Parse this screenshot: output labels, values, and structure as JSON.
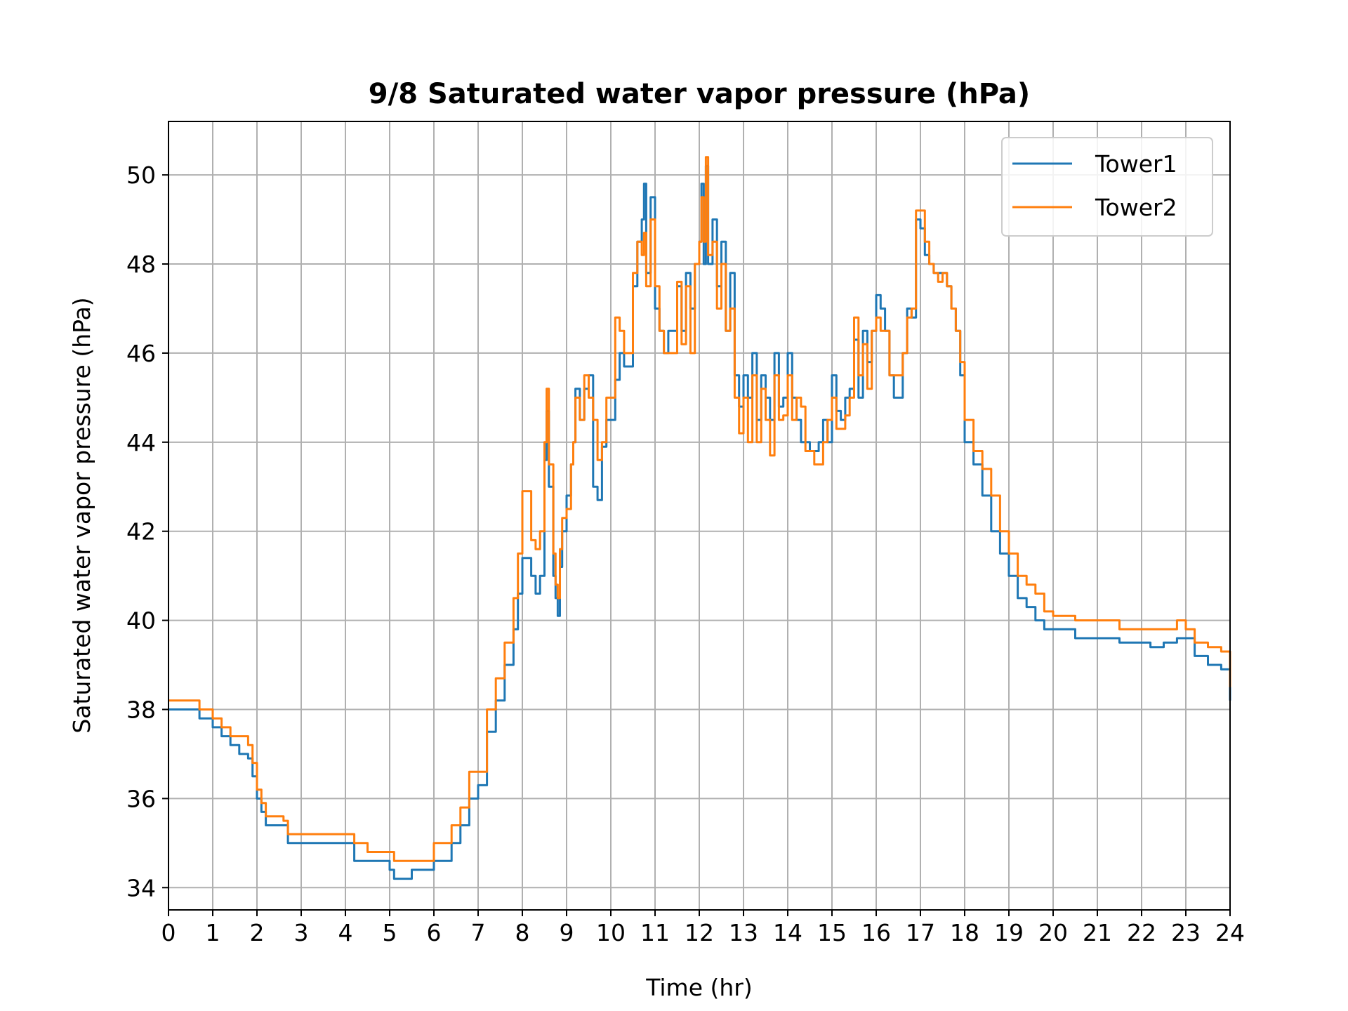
{
  "chart_data": {
    "type": "line",
    "title": "9/8 Saturated water vapor pressure (hPa)",
    "xlabel": "Time (hr)",
    "ylabel": "Saturated water vapor pressure (hPa)",
    "xlim": [
      0,
      24
    ],
    "ylim": [
      33.5,
      51.2
    ],
    "xticks": [
      "0",
      "1",
      "2",
      "3",
      "4",
      "5",
      "6",
      "7",
      "8",
      "9",
      "10",
      "11",
      "12",
      "13",
      "14",
      "15",
      "16",
      "17",
      "18",
      "19",
      "20",
      "21",
      "22",
      "23",
      "24"
    ],
    "yticks": [
      "34",
      "36",
      "38",
      "40",
      "42",
      "44",
      "46",
      "48",
      "50"
    ],
    "grid": true,
    "legend_position": "top-right",
    "series": [
      {
        "name": "Tower1",
        "color": "#1f77b4",
        "x": [
          0,
          0.5,
          0.6,
          0.7,
          0.8,
          1.0,
          1.2,
          1.4,
          1.6,
          1.8,
          1.9,
          2.0,
          2.1,
          2.2,
          2.4,
          2.6,
          2.7,
          3.0,
          3.5,
          4.0,
          4.2,
          4.5,
          5.0,
          5.1,
          5.3,
          5.5,
          5.7,
          5.9,
          6.0,
          6.2,
          6.4,
          6.6,
          6.8,
          7.0,
          7.2,
          7.4,
          7.6,
          7.8,
          7.9,
          8.0,
          8.2,
          8.3,
          8.4,
          8.5,
          8.55,
          8.6,
          8.7,
          8.75,
          8.8,
          8.85,
          8.9,
          9.0,
          9.1,
          9.15,
          9.2,
          9.3,
          9.4,
          9.5,
          9.6,
          9.7,
          9.8,
          9.9,
          10.0,
          10.1,
          10.2,
          10.3,
          10.4,
          10.5,
          10.6,
          10.7,
          10.75,
          10.8,
          10.9,
          11.0,
          11.1,
          11.2,
          11.3,
          11.5,
          11.6,
          11.7,
          11.8,
          11.9,
          12.0,
          12.05,
          12.1,
          12.15,
          12.2,
          12.3,
          12.4,
          12.5,
          12.6,
          12.7,
          12.8,
          12.9,
          13.0,
          13.1,
          13.2,
          13.3,
          13.4,
          13.5,
          13.6,
          13.7,
          13.8,
          13.9,
          14.0,
          14.1,
          14.2,
          14.3,
          14.4,
          14.5,
          14.6,
          14.7,
          14.8,
          14.9,
          15.0,
          15.1,
          15.2,
          15.3,
          15.4,
          15.5,
          15.6,
          15.7,
          15.8,
          15.9,
          16.0,
          16.1,
          16.2,
          16.3,
          16.4,
          16.5,
          16.6,
          16.7,
          16.8,
          16.9,
          17.0,
          17.1,
          17.2,
          17.3,
          17.4,
          17.5,
          17.6,
          17.7,
          17.8,
          17.9,
          18.0,
          18.2,
          18.4,
          18.6,
          18.8,
          19.0,
          19.2,
          19.4,
          19.6,
          19.8,
          20.0,
          20.5,
          21.0,
          21.5,
          22.0,
          22.2,
          22.5,
          22.8,
          23.0,
          23.2,
          23.5,
          23.8,
          24.0
        ],
        "y": [
          38.0,
          38.0,
          38.0,
          37.8,
          37.8,
          37.6,
          37.4,
          37.2,
          37.0,
          36.9,
          36.5,
          36.0,
          35.7,
          35.4,
          35.4,
          35.4,
          35.0,
          35.0,
          35.0,
          35.0,
          34.6,
          34.6,
          34.4,
          34.2,
          34.2,
          34.4,
          34.4,
          34.4,
          34.6,
          34.6,
          35.0,
          35.4,
          36.0,
          36.3,
          37.5,
          38.2,
          39.0,
          39.8,
          40.6,
          41.4,
          41.0,
          40.6,
          41.0,
          43.6,
          44.7,
          43.0,
          41.0,
          40.5,
          40.1,
          41.2,
          42.0,
          42.8,
          43.5,
          44.0,
          45.2,
          44.5,
          45.2,
          45.5,
          43.0,
          42.7,
          43.9,
          44.5,
          44.5,
          45.4,
          46.0,
          45.7,
          45.7,
          47.5,
          48.5,
          49.0,
          49.8,
          47.8,
          49.5,
          47.0,
          46.5,
          46.0,
          46.5,
          47.5,
          46.5,
          47.8,
          47.0,
          48.0,
          48.5,
          49.8,
          48.0,
          50.2,
          48.0,
          49.0,
          47.5,
          48.5,
          46.5,
          47.8,
          45.5,
          44.8,
          45.5,
          45.0,
          46.0,
          44.5,
          45.5,
          45.0,
          44.5,
          46.0,
          44.8,
          45.0,
          46.0,
          45.0,
          44.5,
          44.0,
          44.0,
          43.8,
          43.8,
          44.0,
          44.5,
          44.0,
          45.5,
          44.7,
          44.5,
          45.0,
          45.2,
          46.3,
          45.0,
          46.5,
          45.8,
          46.5,
          47.3,
          47.0,
          46.5,
          45.5,
          45.0,
          45.0,
          46.0,
          47.0,
          46.8,
          49.0,
          48.8,
          48.2,
          48.0,
          47.8,
          47.8,
          47.8,
          47.5,
          47.0,
          46.5,
          45.5,
          44.0,
          43.5,
          42.8,
          42.0,
          41.5,
          41.0,
          40.5,
          40.3,
          40.0,
          39.8,
          39.8,
          39.6,
          39.6,
          39.5,
          39.5,
          39.4,
          39.5,
          39.6,
          39.6,
          39.2,
          39.0,
          38.9,
          38.2
        ]
      },
      {
        "name": "Tower2",
        "color": "#ff7f0e",
        "x": [
          0,
          0.5,
          0.6,
          0.7,
          0.8,
          1.0,
          1.2,
          1.4,
          1.6,
          1.8,
          1.9,
          2.0,
          2.1,
          2.2,
          2.4,
          2.6,
          2.7,
          3.0,
          3.5,
          4.0,
          4.2,
          4.5,
          5.0,
          5.1,
          5.3,
          5.5,
          5.7,
          5.9,
          6.0,
          6.2,
          6.4,
          6.6,
          6.8,
          7.0,
          7.2,
          7.4,
          7.6,
          7.8,
          7.9,
          8.0,
          8.2,
          8.3,
          8.4,
          8.5,
          8.55,
          8.6,
          8.7,
          8.75,
          8.8,
          8.85,
          8.9,
          9.0,
          9.1,
          9.15,
          9.2,
          9.3,
          9.4,
          9.5,
          9.6,
          9.7,
          9.8,
          9.9,
          10.0,
          10.1,
          10.2,
          10.3,
          10.4,
          10.5,
          10.6,
          10.7,
          10.75,
          10.8,
          10.9,
          11.0,
          11.1,
          11.2,
          11.3,
          11.5,
          11.6,
          11.7,
          11.8,
          11.9,
          12.0,
          12.05,
          12.1,
          12.15,
          12.2,
          12.3,
          12.4,
          12.5,
          12.6,
          12.7,
          12.8,
          12.9,
          13.0,
          13.1,
          13.2,
          13.3,
          13.4,
          13.5,
          13.6,
          13.7,
          13.8,
          13.9,
          14.0,
          14.1,
          14.2,
          14.3,
          14.4,
          14.5,
          14.6,
          14.7,
          14.8,
          14.9,
          15.0,
          15.1,
          15.2,
          15.3,
          15.4,
          15.5,
          15.6,
          15.7,
          15.8,
          15.9,
          16.0,
          16.1,
          16.2,
          16.3,
          16.4,
          16.5,
          16.6,
          16.7,
          16.8,
          16.9,
          17.0,
          17.1,
          17.2,
          17.3,
          17.4,
          17.5,
          17.6,
          17.7,
          17.8,
          17.9,
          18.0,
          18.2,
          18.4,
          18.6,
          18.8,
          19.0,
          19.2,
          19.4,
          19.6,
          19.8,
          20.0,
          20.5,
          21.0,
          21.5,
          22.0,
          22.2,
          22.5,
          22.8,
          23.0,
          23.2,
          23.5,
          23.8,
          24.0
        ],
        "y": [
          38.2,
          38.2,
          38.2,
          38.0,
          38.0,
          37.8,
          37.6,
          37.4,
          37.4,
          37.2,
          36.8,
          36.2,
          35.9,
          35.6,
          35.6,
          35.5,
          35.2,
          35.2,
          35.2,
          35.2,
          35.0,
          34.8,
          34.8,
          34.6,
          34.6,
          34.6,
          34.6,
          34.6,
          35.0,
          35.0,
          35.4,
          35.8,
          36.6,
          36.6,
          38.0,
          38.7,
          39.5,
          40.5,
          41.5,
          42.9,
          41.8,
          41.6,
          42.0,
          44.0,
          45.2,
          43.5,
          41.5,
          40.8,
          40.5,
          41.6,
          42.3,
          42.5,
          43.5,
          44.0,
          45.0,
          44.5,
          45.5,
          45.0,
          44.5,
          43.6,
          44.0,
          45.0,
          45.0,
          46.8,
          46.5,
          46.0,
          46.0,
          47.8,
          48.5,
          48.2,
          48.7,
          47.5,
          49.0,
          47.5,
          46.5,
          46.0,
          46.0,
          47.6,
          46.2,
          47.5,
          46.0,
          48.0,
          48.5,
          49.5,
          48.5,
          50.4,
          48.2,
          48.5,
          47.0,
          48.0,
          46.5,
          47.0,
          45.0,
          44.2,
          45.0,
          44.0,
          45.5,
          44.0,
          45.2,
          44.5,
          43.7,
          45.5,
          44.5,
          44.6,
          45.5,
          44.5,
          45.0,
          44.8,
          43.8,
          43.8,
          43.5,
          43.5,
          44.0,
          44.5,
          45.0,
          44.3,
          44.3,
          44.6,
          45.0,
          46.8,
          45.5,
          46.2,
          45.2,
          46.5,
          46.8,
          46.5,
          46.5,
          45.5,
          45.5,
          45.5,
          46.0,
          46.8,
          47.0,
          49.2,
          49.2,
          48.5,
          48.0,
          47.8,
          47.6,
          47.8,
          47.5,
          47.0,
          46.5,
          45.8,
          44.5,
          43.8,
          43.4,
          42.8,
          42.0,
          41.5,
          41.0,
          40.8,
          40.6,
          40.2,
          40.1,
          40.0,
          40.0,
          39.8,
          39.8,
          39.8,
          39.8,
          40.0,
          39.8,
          39.5,
          39.4,
          39.3,
          38.5
        ]
      }
    ]
  }
}
